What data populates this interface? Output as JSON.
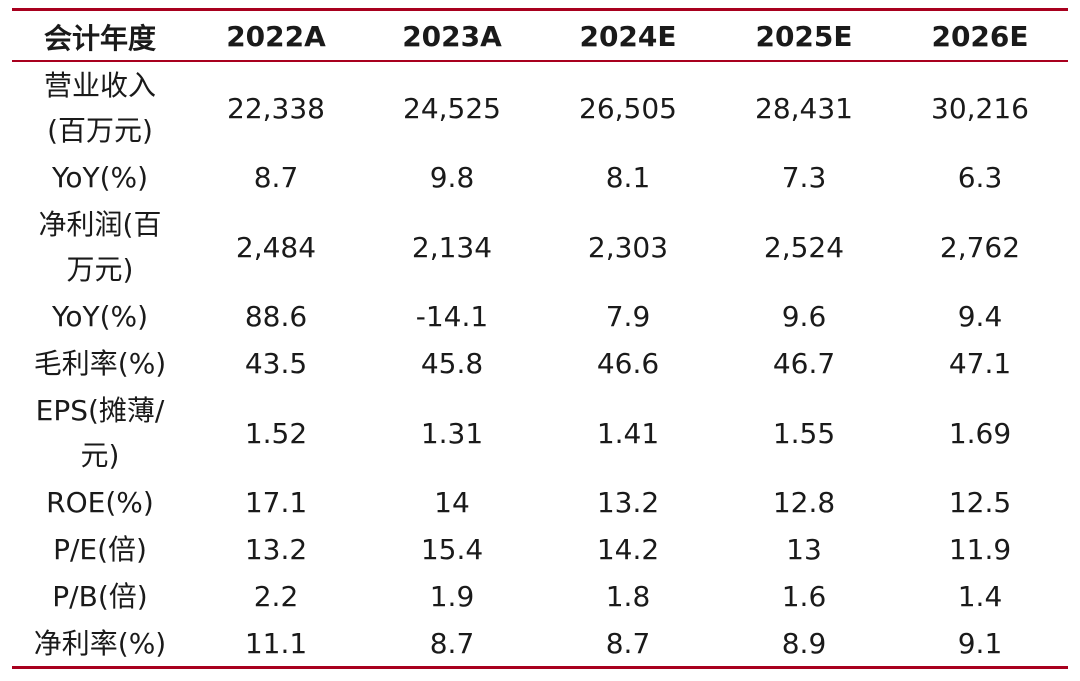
{
  "table": {
    "header": [
      "会计年度",
      "2022A",
      "2023A",
      "2024E",
      "2025E",
      "2026E"
    ],
    "rows": [
      {
        "label": [
          "营业收入",
          "(百万元)"
        ],
        "values": [
          "22,338",
          "24,525",
          "26,505",
          "28,431",
          "30,216"
        ]
      },
      {
        "label": [
          "YoY(%)"
        ],
        "values": [
          "8.7",
          "9.8",
          "8.1",
          "7.3",
          "6.3"
        ]
      },
      {
        "label": [
          "净利润(百",
          "万元)"
        ],
        "values": [
          "2,484",
          "2,134",
          "2,303",
          "2,524",
          "2,762"
        ]
      },
      {
        "label": [
          "YoY(%)"
        ],
        "values": [
          "88.6",
          "-14.1",
          "7.9",
          "9.6",
          "9.4"
        ]
      },
      {
        "label": [
          "毛利率(%)"
        ],
        "values": [
          "43.5",
          "45.8",
          "46.6",
          "46.7",
          "47.1"
        ]
      },
      {
        "label": [
          "EPS(摊薄/",
          "元)"
        ],
        "values": [
          "1.52",
          "1.31",
          "1.41",
          "1.55",
          "1.69"
        ]
      },
      {
        "label": [
          "ROE(%)"
        ],
        "values": [
          "17.1",
          "14",
          "13.2",
          "12.8",
          "12.5"
        ]
      },
      {
        "label": [
          "P/E(倍)"
        ],
        "values": [
          "13.2",
          "15.4",
          "14.2",
          "13",
          "11.9"
        ]
      },
      {
        "label": [
          "P/B(倍)"
        ],
        "values": [
          "2.2",
          "1.9",
          "1.8",
          "1.6",
          "1.4"
        ]
      },
      {
        "label": [
          "净利率(%)"
        ],
        "values": [
          "11.1",
          "8.7",
          "8.7",
          "8.9",
          "9.1"
        ]
      }
    ]
  },
  "colors": {
    "rule": "#a8001e",
    "text": "#1a1a1a"
  }
}
